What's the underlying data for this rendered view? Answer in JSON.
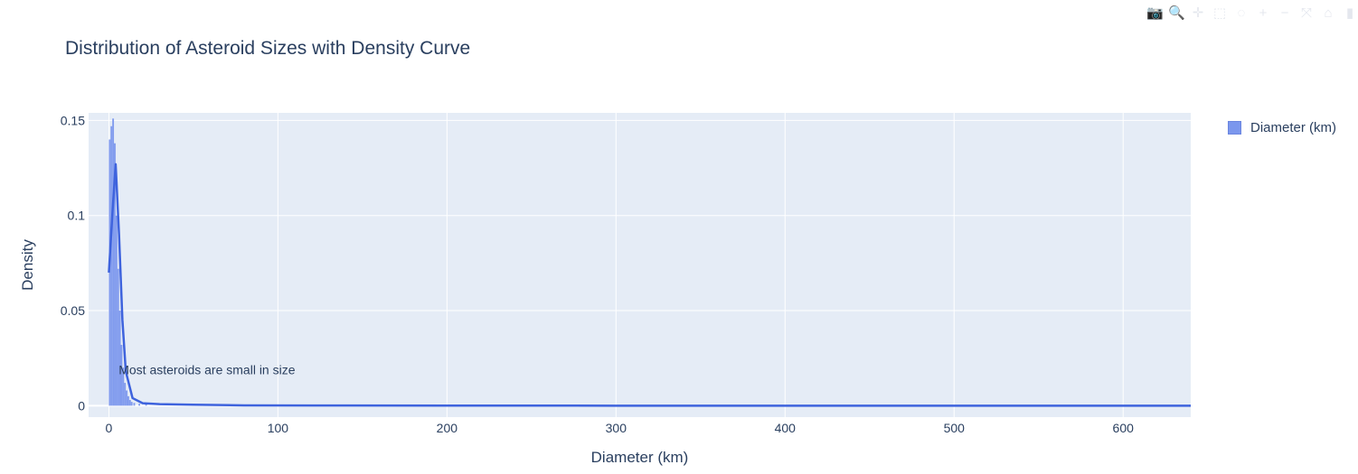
{
  "modebar": {
    "icons": [
      "camera-icon",
      "zoom-icon",
      "pan-icon",
      "box-select-icon",
      "lasso-icon",
      "zoom-in-icon",
      "zoom-out-icon",
      "autoscale-icon",
      "reset-axes-icon",
      "plotly-logo-icon"
    ],
    "glyphs": [
      "📷",
      "🔍",
      "✛",
      "⬚",
      "◌",
      "+",
      "−",
      "⤧",
      "⌂",
      "▮"
    ]
  },
  "colors": {
    "plot_bg": "#e5ecf6",
    "bar_fill": "#7b97ed",
    "line": "#3e63dd",
    "text": "#2a3f5f",
    "grid": "#ffffff"
  },
  "chart_data": {
    "type": "bar",
    "title": "Distribution of Asteroid Sizes with Density Curve",
    "xlabel": "Diameter (km)",
    "ylabel": "Density",
    "xlim": [
      -12,
      640
    ],
    "ylim": [
      -0.006,
      0.154
    ],
    "xticks": [
      0,
      100,
      200,
      300,
      400,
      500,
      600
    ],
    "xtick_labels": [
      "0",
      "100",
      "200",
      "300",
      "400",
      "500",
      "600"
    ],
    "yticks": [
      0,
      0.05,
      0.1,
      0.15
    ],
    "ytick_labels": [
      "0",
      "0.05",
      "0.1",
      "0.15"
    ],
    "grid": true,
    "legend": {
      "position": "top-right",
      "entries": [
        "Diameter (km)"
      ]
    },
    "histogram": {
      "name": "Diameter (km)",
      "bin_width": 1,
      "bins": [
        {
          "x": 0.5,
          "y": 0.14
        },
        {
          "x": 1.5,
          "y": 0.147
        },
        {
          "x": 2.5,
          "y": 0.151
        },
        {
          "x": 3.5,
          "y": 0.138
        },
        {
          "x": 4.5,
          "y": 0.1
        },
        {
          "x": 5.5,
          "y": 0.072
        },
        {
          "x": 6.5,
          "y": 0.05
        },
        {
          "x": 7.5,
          "y": 0.032
        },
        {
          "x": 8.5,
          "y": 0.02
        },
        {
          "x": 9.5,
          "y": 0.012
        },
        {
          "x": 10.5,
          "y": 0.008
        },
        {
          "x": 11.5,
          "y": 0.005
        },
        {
          "x": 12.5,
          "y": 0.003
        },
        {
          "x": 13.5,
          "y": 0.002
        },
        {
          "x": 15,
          "y": 0.0015
        },
        {
          "x": 18,
          "y": 0.001
        },
        {
          "x": 22,
          "y": 0.0008
        }
      ]
    },
    "density_curve": {
      "x": [
        0,
        2,
        4,
        6,
        8,
        10,
        14,
        20,
        30,
        50,
        80,
        120,
        200,
        300,
        400,
        500,
        640
      ],
      "y": [
        0.07,
        0.1,
        0.127,
        0.09,
        0.045,
        0.018,
        0.004,
        0.0013,
        0.0008,
        0.0005,
        0.0002,
        0.0001,
        5e-05,
        2e-05,
        1e-05,
        5e-06,
        0.0
      ]
    },
    "annotations": [
      {
        "text": "Most asteroids are small in size",
        "x": 58,
        "y": 0.019
      }
    ]
  }
}
